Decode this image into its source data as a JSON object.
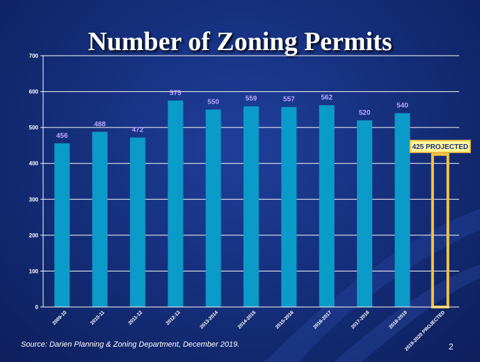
{
  "slide": {
    "source": "Source: Darien Planning & Zoning Department, December 2019.",
    "page_number": "2"
  },
  "colors": {
    "bar": "#0b9bc9",
    "projected_outline": "#f5c242",
    "projected_callout_bg": "#fff79a",
    "data_label": "#b8a8ff",
    "grid": "#ffffff"
  },
  "chart_data": {
    "type": "bar",
    "title": "Number of Zoning Permits",
    "xlabel": "",
    "ylabel": "",
    "ylim": [
      0,
      700
    ],
    "yticks": [
      "0",
      "100",
      "200",
      "300",
      "400",
      "500",
      "600",
      "700"
    ],
    "grid": true,
    "categories": [
      "2009-10",
      "2010-11",
      "2011-12",
      "2012-13",
      "2013-2014",
      "2014-2015",
      "2015-2016",
      "2016-2017",
      "2017-2018",
      "2018-2019",
      "2019-2020 PROJECTED"
    ],
    "values": [
      456,
      488,
      472,
      575,
      550,
      559,
      557,
      562,
      520,
      540,
      425
    ],
    "data_labels": [
      "456",
      "488",
      "472",
      "575",
      "550",
      "559",
      "557",
      "562",
      "520",
      "540",
      "425 PROJECTED"
    ],
    "projected_index": 10
  }
}
